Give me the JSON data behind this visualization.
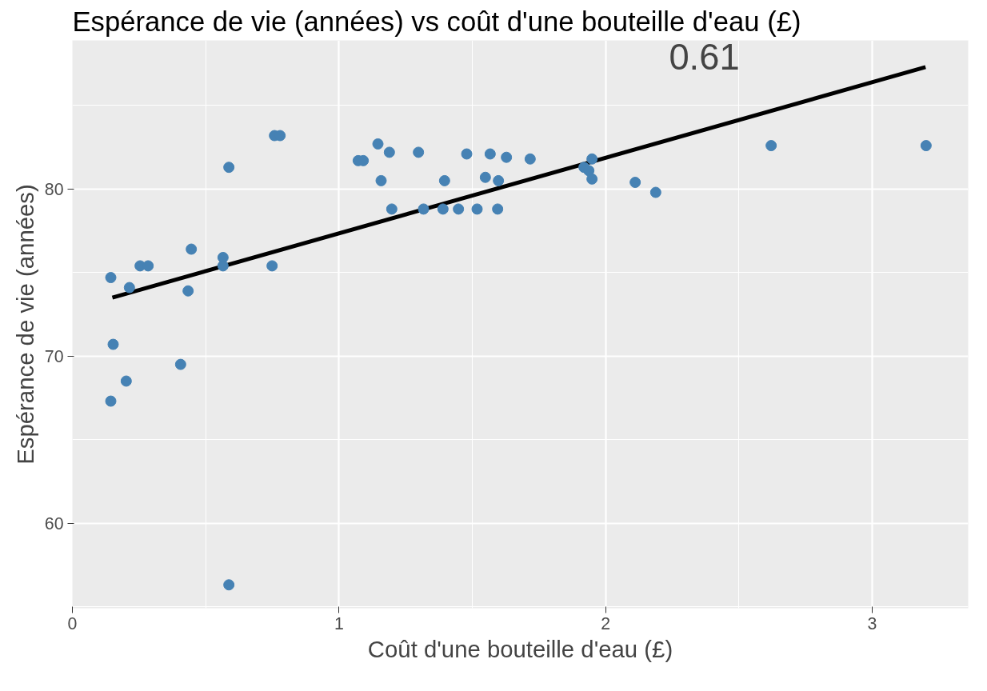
{
  "chart_data": {
    "type": "scatter",
    "title": "Espérance de vie (années) vs coût d'une bouteille d'eau (£)",
    "xlabel": "Coût d'une bouteille d'eau (£)",
    "ylabel": "Espérance de vie (années)",
    "xlim": [
      0,
      3.36
    ],
    "ylim": [
      54.9,
      88.9
    ],
    "xticks": [
      0,
      1,
      2,
      3
    ],
    "yticks": [
      60,
      70,
      80
    ],
    "grid": true,
    "series": [
      {
        "marker": "circle",
        "color": "#4682b4",
        "x": [
          0.144,
          0.153,
          0.144,
          0.202,
          0.214,
          0.254,
          0.284,
          0.406,
          0.434,
          0.446,
          0.565,
          0.565,
          0.587,
          0.587,
          0.749,
          0.758,
          0.779,
          1.072,
          1.091,
          1.146,
          1.158,
          1.189,
          1.198,
          1.298,
          1.317,
          1.39,
          1.396,
          1.448,
          1.479,
          1.518,
          1.549,
          1.567,
          1.595,
          1.598,
          1.628,
          1.717,
          1.919,
          1.937,
          1.949,
          1.949,
          2.111,
          2.188,
          2.621,
          3.202
        ],
        "values": [
          74.7,
          70.7,
          67.3,
          68.5,
          74.1,
          75.4,
          75.4,
          69.5,
          73.9,
          76.4,
          75.9,
          75.4,
          81.3,
          56.3,
          75.4,
          83.2,
          83.2,
          81.7,
          81.7,
          82.7,
          80.5,
          82.2,
          78.8,
          82.2,
          78.8,
          78.8,
          80.5,
          78.8,
          82.1,
          78.8,
          80.7,
          82.1,
          78.8,
          80.5,
          81.9,
          81.8,
          81.3,
          81.1,
          81.8,
          80.6,
          80.4,
          79.8,
          82.6,
          82.6
        ]
      },
      {
        "type": "line",
        "marker": "none",
        "color": "#000000",
        "x": [
          0.15,
          3.2
        ],
        "values": [
          73.5,
          87.3
        ]
      }
    ],
    "annotations": [
      "0.61"
    ]
  }
}
